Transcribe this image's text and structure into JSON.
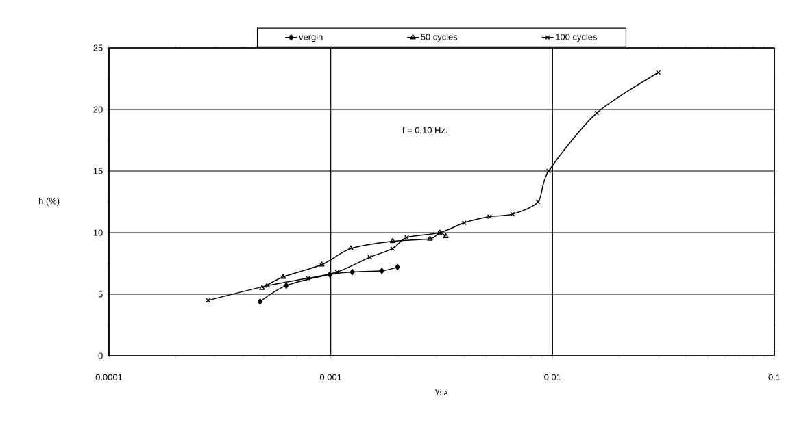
{
  "chart_data": {
    "type": "line",
    "xlabel": "γ$_{SA}$",
    "ylabel": "h (%)",
    "log": "x",
    "grid": true,
    "legend": "top",
    "line_style": "solid",
    "xlim": [
      0.0001,
      0.1
    ],
    "ylim": [
      0,
      25
    ],
    "xticks": [
      0.0001,
      0.001,
      0.01,
      0.1
    ],
    "yticks": [
      0,
      5,
      10,
      15,
      20,
      25
    ],
    "annotations": [
      "f = 0.10 Hz."
    ],
    "series": [
      {
        "name": "vergin",
        "color": "#000000",
        "marker": "diamond",
        "x": [
          0.00048,
          0.00063,
          0.00099,
          0.00125,
          0.0017,
          0.002
        ],
        "values": [
          4.4,
          5.7,
          6.6,
          6.8,
          6.9,
          7.2
        ]
      },
      {
        "name": "50 cycles",
        "color": "#000000",
        "marker": "triangle",
        "x": [
          0.00049,
          0.00061,
          0.00091,
          0.00123,
          0.0019,
          0.0028,
          0.0031,
          0.0033
        ],
        "values": [
          5.5,
          6.4,
          7.4,
          8.7,
          9.3,
          9.5,
          10.0,
          9.7
        ]
      },
      {
        "name": "100 cycles",
        "color": "#000000",
        "marker": "cross",
        "x": [
          0.00028,
          0.00052,
          0.00079,
          0.00107,
          0.0015,
          0.0019,
          0.0022,
          0.0031,
          0.004,
          0.0052,
          0.0066,
          0.0086,
          0.0096,
          0.0158,
          0.03
        ],
        "values": [
          4.5,
          5.7,
          6.3,
          6.8,
          8.0,
          8.7,
          9.6,
          10.0,
          10.8,
          11.3,
          11.5,
          12.5,
          15.0,
          19.7,
          23.0
        ]
      }
    ]
  }
}
